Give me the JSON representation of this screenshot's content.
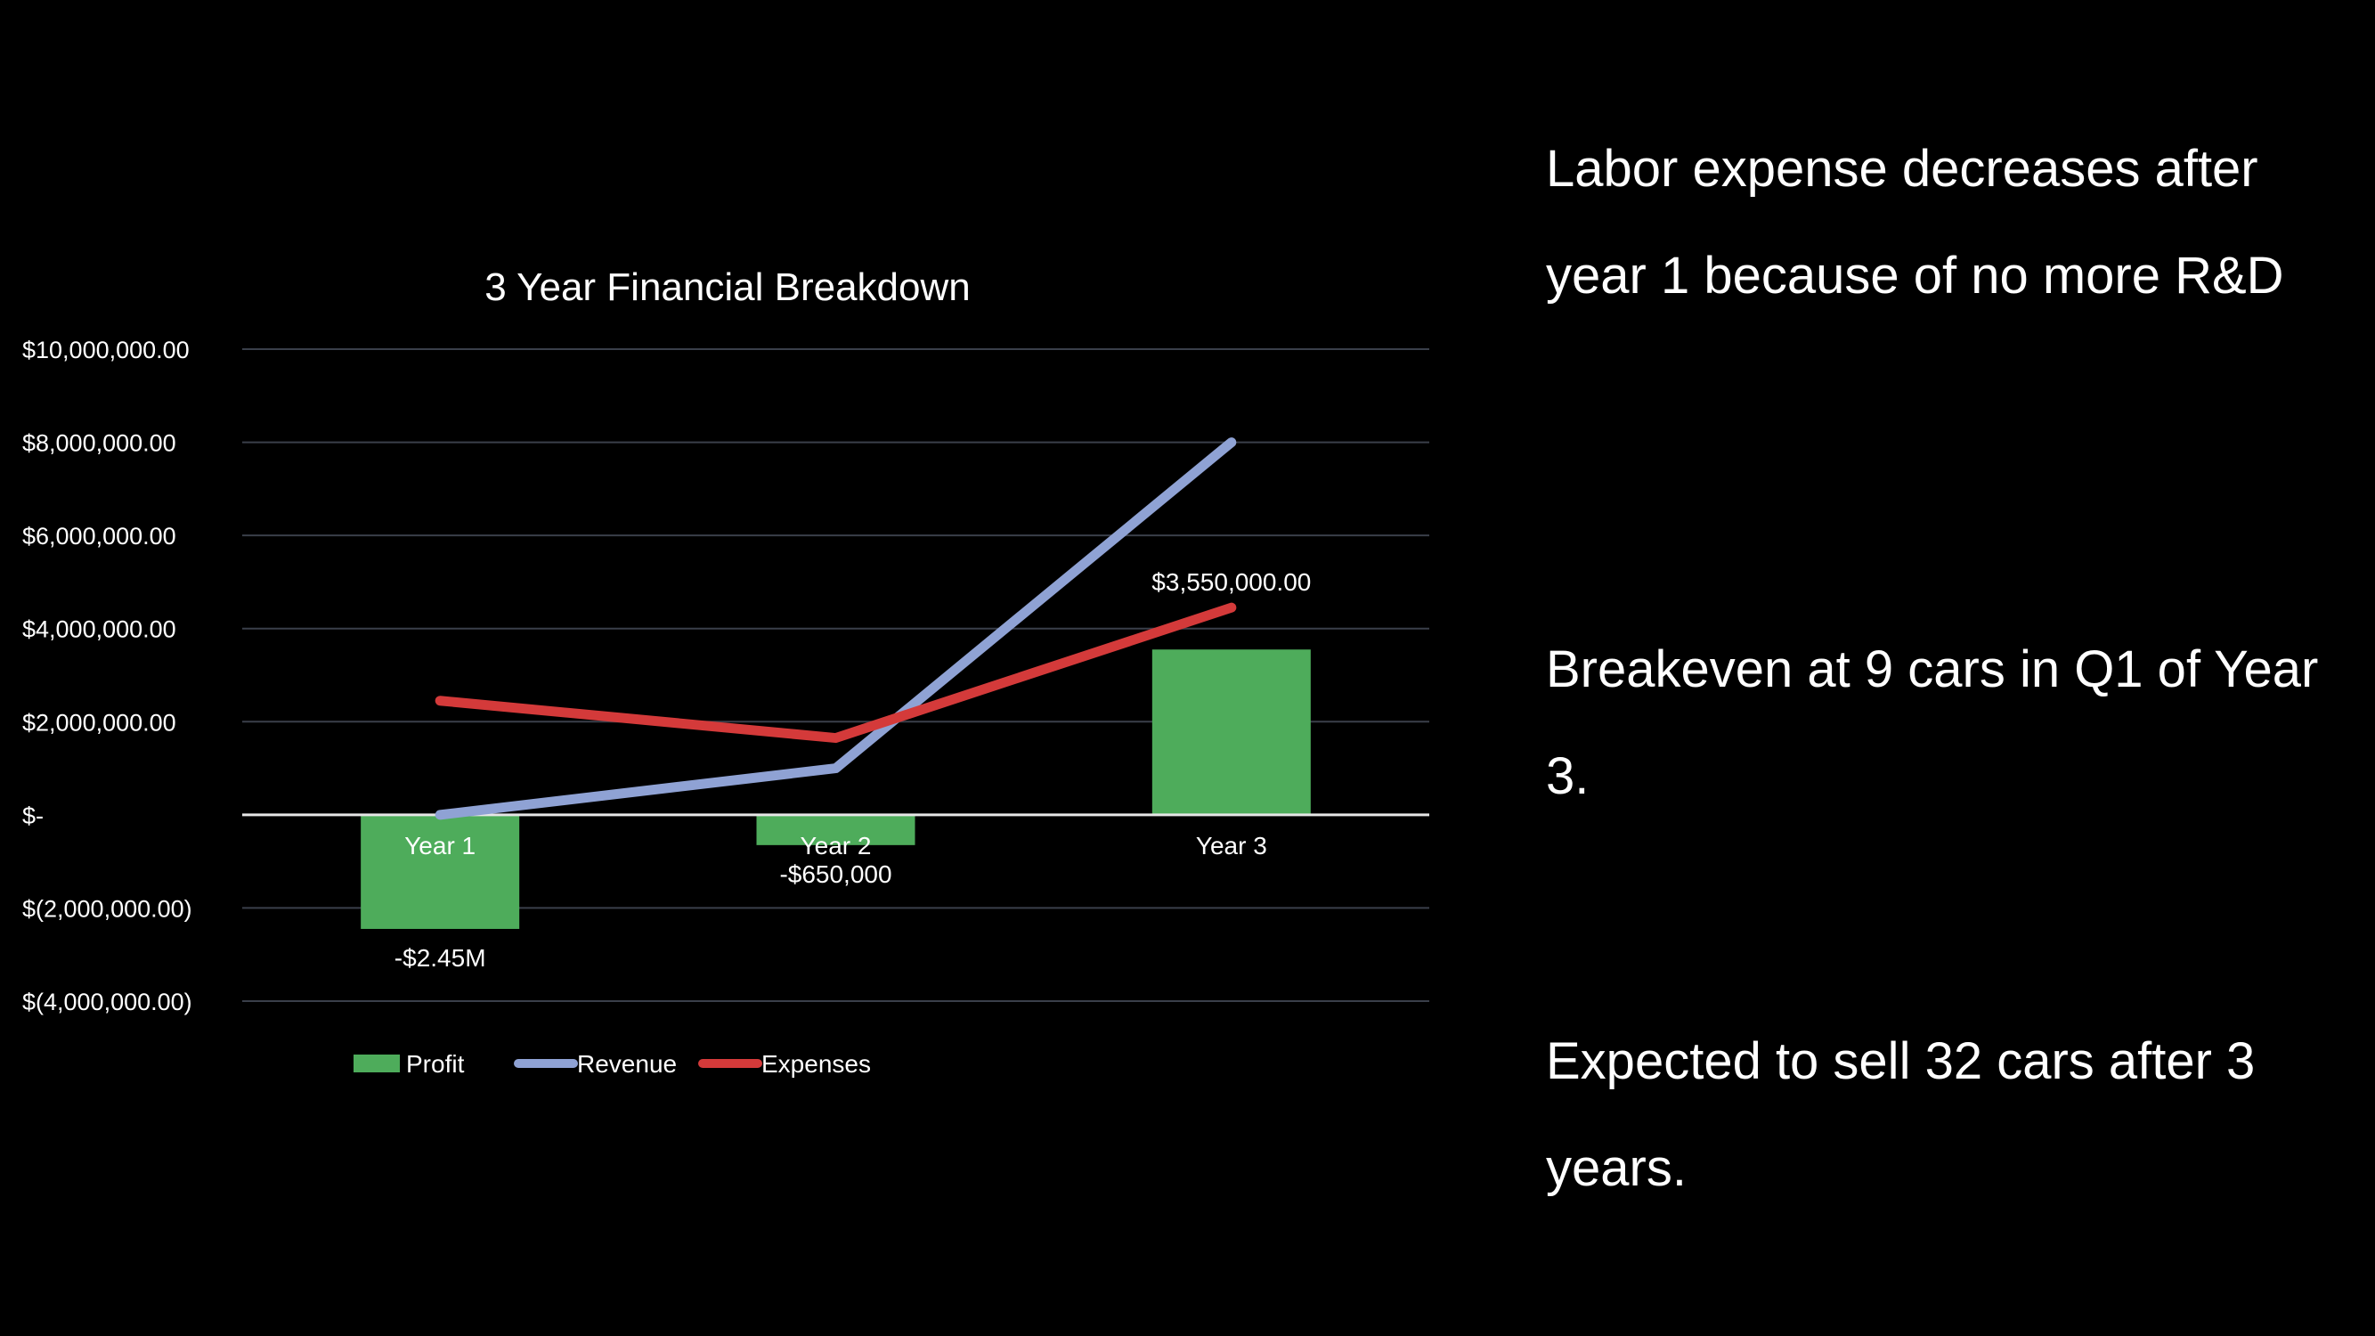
{
  "chart_data": {
    "type": "bar+line",
    "title": "3 Year Financial Breakdown",
    "categories": [
      "Year 1",
      "Year 2",
      "Year 3"
    ],
    "ylim": [
      -4000000,
      10000000
    ],
    "y_ticks": [
      10000000,
      8000000,
      6000000,
      4000000,
      2000000,
      0,
      -2000000,
      -4000000
    ],
    "y_tick_labels": [
      "$10,000,000.00",
      "$8,000,000.00",
      "$6,000,000.00",
      "$4,000,000.00",
      "$2,000,000.00",
      "$-",
      "$(2,000,000.00)",
      "$(4,000,000.00)"
    ],
    "grid": true,
    "legend_position": "bottom-left",
    "series": [
      {
        "name": "Profit",
        "kind": "bar",
        "color": "#4eac5b",
        "values": [
          -2450000,
          -650000,
          3550000
        ],
        "data_labels": [
          "-$2.45M",
          "-$650,000",
          "$3,550,000.00"
        ]
      },
      {
        "name": "Revenue",
        "kind": "line",
        "color": "#8fa2d4",
        "values": [
          0,
          1000000,
          8000000
        ]
      },
      {
        "name": "Expenses",
        "kind": "line",
        "color": "#d43a3a",
        "values": [
          2450000,
          1650000,
          4450000
        ]
      }
    ]
  },
  "notes": {
    "labor": "Labor expense decreases after year 1 because of no more R&D",
    "breakeven": "Breakeven at 9 cars in Q1 of Year 3.",
    "expected": "Expected to sell 32 cars after 3 years."
  }
}
